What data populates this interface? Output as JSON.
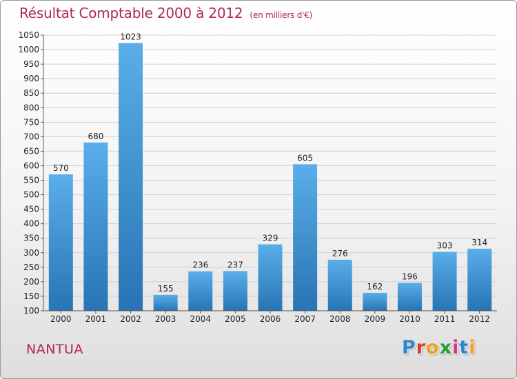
{
  "title": "Résultat Comptable 2000 à 2012",
  "title_unit": "(en milliers d'€)",
  "commune": "NANTUA",
  "logo": {
    "letters": [
      "P",
      "r",
      "o",
      "x",
      "i",
      "t",
      "i"
    ],
    "colors": [
      "#2e86c8",
      "#e0392b",
      "#f0a020",
      "#2a9d3a",
      "#d8328f",
      "#2e86c8",
      "#f0a020"
    ]
  },
  "colors": {
    "bar_top": "#5aaeea",
    "bar_bottom": "#2874b4",
    "title": "#b3245e"
  },
  "chart_data": {
    "type": "bar",
    "title": "Résultat Comptable 2000 à 2012",
    "xlabel": "",
    "ylabel": "",
    "categories": [
      "2000",
      "2001",
      "2002",
      "2003",
      "2004",
      "2005",
      "2006",
      "2007",
      "2008",
      "2009",
      "2010",
      "2011",
      "2012"
    ],
    "values": [
      570,
      680,
      1023,
      155,
      236,
      237,
      329,
      605,
      276,
      162,
      196,
      303,
      314
    ],
    "ylim": [
      100,
      1050
    ],
    "yticks": [
      100,
      150,
      200,
      250,
      300,
      350,
      400,
      450,
      500,
      550,
      600,
      650,
      700,
      750,
      800,
      850,
      900,
      950,
      1000,
      1050
    ],
    "grid": true
  }
}
